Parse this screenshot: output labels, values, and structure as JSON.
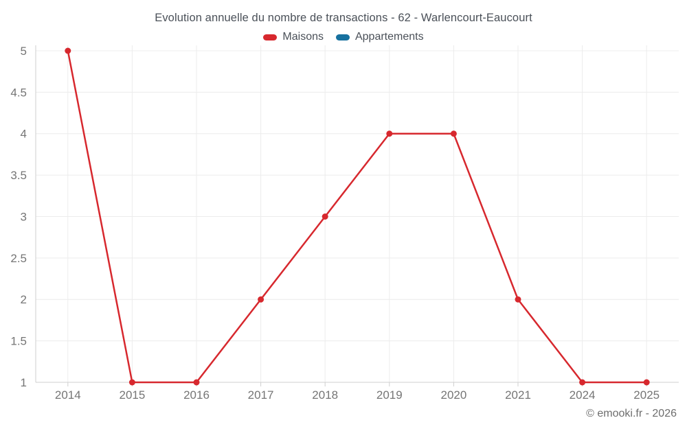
{
  "title": "Evolution annuelle du nombre de transactions - 62 - Warlencourt-Eaucourt",
  "footer": {
    "copyright": "© emooki.fr - 2026"
  },
  "colors": {
    "maisons": "#d7282e",
    "appartements": "#17719f",
    "gridline": "#ececec",
    "axis_border": "#cfcfcf",
    "tick_text": "#757575"
  },
  "chart_data": {
    "type": "line",
    "title": "Evolution annuelle du nombre de transactions - 62 - Warlencourt-Eaucourt",
    "categories": [
      "2014",
      "2015",
      "2016",
      "2017",
      "2018",
      "2019",
      "2020",
      "2021",
      "2024",
      "2025"
    ],
    "series": [
      {
        "name": "Maisons",
        "color": "#d7282e",
        "values": [
          5,
          1,
          1,
          2,
          3,
          4,
          4,
          2,
          1,
          1
        ]
      },
      {
        "name": "Appartements",
        "color": "#17719f",
        "values": []
      }
    ],
    "xlabel": "",
    "ylabel": "",
    "ylim": [
      1,
      5
    ],
    "y_ticks": [
      "1",
      "1.5",
      "2",
      "2.5",
      "3",
      "3.5",
      "4",
      "4.5",
      "5"
    ],
    "grid": true,
    "legend_position": "top"
  }
}
